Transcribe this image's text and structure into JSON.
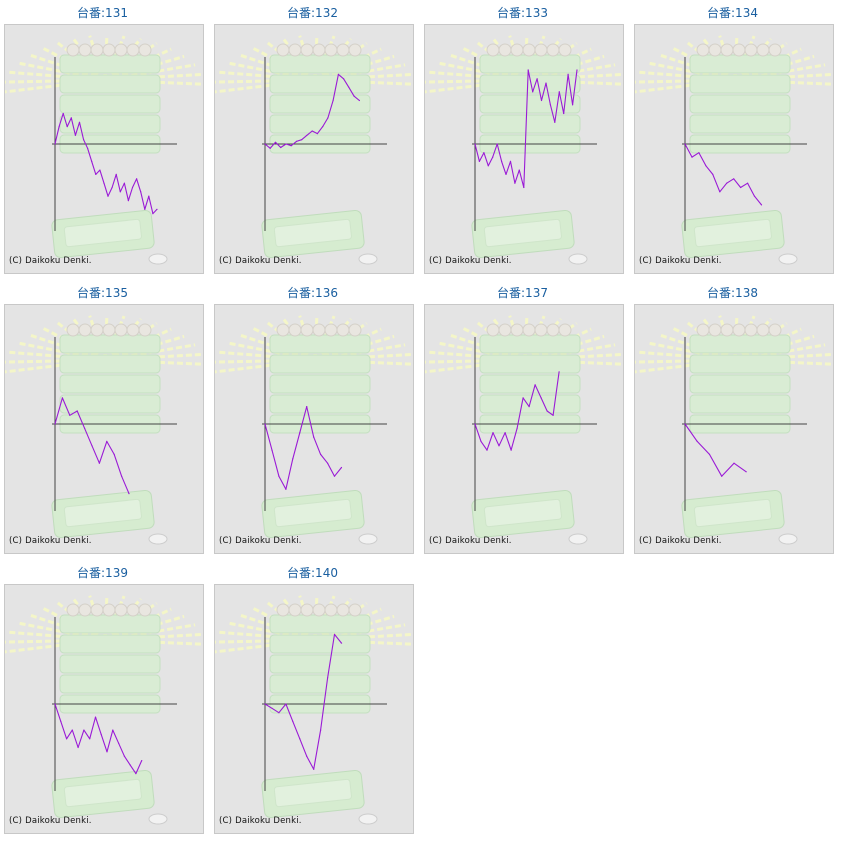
{
  "copyright": "(C) Daikoku Denki.",
  "colors": {
    "line": "#9a1ad6",
    "axis": "#444444",
    "title": "#1a5fa0",
    "panel_bg": "#e4e4e4"
  },
  "chart_data": [
    {
      "type": "line",
      "title": "台番:131",
      "ylim": [
        -1,
        1
      ],
      "values": [
        0,
        0.2,
        0.35,
        0.2,
        0.3,
        0.1,
        0.25,
        0.05,
        -0.05,
        -0.2,
        -0.35,
        -0.3,
        -0.45,
        -0.6,
        -0.5,
        -0.35,
        -0.55,
        -0.45,
        -0.65,
        -0.5,
        -0.4,
        -0.55,
        -0.75,
        -0.6,
        -0.8,
        -0.75
      ]
    },
    {
      "type": "line",
      "title": "台番:132",
      "ylim": [
        -1,
        1
      ],
      "values": [
        0,
        -0.05,
        0.02,
        -0.04,
        0,
        -0.02,
        0.03,
        0.05,
        0.1,
        0.15,
        0.12,
        0.2,
        0.3,
        0.5,
        0.8,
        0.75,
        0.65,
        0.55,
        0.5
      ]
    },
    {
      "type": "line",
      "title": "台番:133",
      "ylim": [
        -1,
        1
      ],
      "values": [
        0,
        -0.2,
        -0.1,
        -0.25,
        -0.15,
        0,
        -0.2,
        -0.35,
        -0.2,
        -0.45,
        -0.3,
        -0.5,
        0.85,
        0.6,
        0.75,
        0.5,
        0.7,
        0.45,
        0.25,
        0.6,
        0.35,
        0.8,
        0.45,
        0.85
      ]
    },
    {
      "type": "line",
      "title": "台番:134",
      "ylim": [
        -1,
        1
      ],
      "values": [
        0,
        -0.15,
        -0.1,
        -0.25,
        -0.35,
        -0.55,
        -0.45,
        -0.4,
        -0.5,
        -0.45,
        -0.6,
        -0.7
      ]
    },
    {
      "type": "line",
      "title": "台番:135",
      "ylim": [
        -1,
        1
      ],
      "values": [
        0,
        0.3,
        0.1,
        0.15,
        -0.05,
        -0.25,
        -0.45,
        -0.2,
        -0.35,
        -0.6,
        -0.8
      ]
    },
    {
      "type": "line",
      "title": "台番:136",
      "ylim": [
        -1,
        1
      ],
      "values": [
        0,
        -0.3,
        -0.6,
        -0.75,
        -0.4,
        -0.1,
        0.2,
        -0.15,
        -0.35,
        -0.45,
        -0.6,
        -0.5
      ]
    },
    {
      "type": "line",
      "title": "台番:137",
      "ylim": [
        -1,
        1
      ],
      "values": [
        0,
        -0.2,
        -0.3,
        -0.1,
        -0.25,
        -0.1,
        -0.3,
        -0.05,
        0.3,
        0.2,
        0.45,
        0.3,
        0.15,
        0.1,
        0.6
      ]
    },
    {
      "type": "line",
      "title": "台番:138",
      "ylim": [
        -1,
        1
      ],
      "values": [
        0,
        -0.2,
        -0.35,
        -0.6,
        -0.45,
        -0.55
      ]
    },
    {
      "type": "line",
      "title": "台番:139",
      "ylim": [
        -1,
        1
      ],
      "values": [
        0,
        -0.2,
        -0.4,
        -0.3,
        -0.5,
        -0.3,
        -0.4,
        -0.15,
        -0.35,
        -0.55,
        -0.3,
        -0.45,
        -0.6,
        -0.7,
        -0.8,
        -0.65
      ]
    },
    {
      "type": "line",
      "title": "台番:140",
      "ylim": [
        -1,
        1
      ],
      "values": [
        0,
        -0.05,
        -0.1,
        0,
        -0.2,
        -0.4,
        -0.6,
        -0.75,
        -0.3,
        0.3,
        0.8,
        0.7
      ]
    }
  ]
}
